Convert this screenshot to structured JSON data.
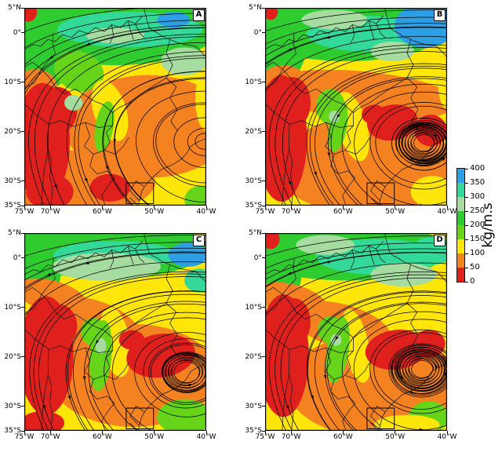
{
  "chart_data": {
    "type": "heatmap",
    "description": "Four-panel (A-D) map figure over South America: shaded vertically-integrated moisture flux magnitude (kg/m.s) with overlaid black streamlines (arrows), country borders, and a small study-area box near the bottom of each panel. Shared vertical colorbar at right.",
    "extent": {
      "lon_ticks_range": [
        "75°W",
        "40°W"
      ],
      "lat_ticks_range": [
        "5°N",
        "35°S"
      ]
    },
    "x_ticks": [
      {
        "label": "75°W",
        "f": 0.0
      },
      {
        "label": "70°W",
        "f": 0.1429
      },
      {
        "label": "60°W",
        "f": 0.4286
      },
      {
        "label": "50°W",
        "f": 0.7143
      },
      {
        "label": "40°W",
        "f": 1.0
      }
    ],
    "y_ticks": [
      {
        "label": "5°N",
        "f": 0.0
      },
      {
        "label": "0°",
        "f": 0.125
      },
      {
        "label": "10°S",
        "f": 0.375
      },
      {
        "label": "20°S",
        "f": 0.625
      },
      {
        "label": "30°S",
        "f": 0.875
      },
      {
        "label": "35°S",
        "f": 1.0
      }
    ],
    "colorbar": {
      "label": "kg/m.s",
      "min": 0,
      "max": 400,
      "step": 50,
      "tick_labels": [
        "400",
        "350",
        "300",
        "250",
        "200",
        "150",
        "100",
        "50",
        "0"
      ],
      "colors_top_to_bottom": [
        "#2D9FE4",
        "#33D999",
        "#A6DCA0",
        "#2ECC2E",
        "#66D419",
        "#FFE60A",
        "#F58220",
        "#E0201C"
      ]
    },
    "palette": {
      "r": "#E0201C",
      "o": "#F58220",
      "y": "#FFE60A",
      "gy": "#66D419",
      "g": "#2ECC2E",
      "pg": "#A6DCA0",
      "t": "#33D999",
      "b": "#2D9FE4"
    },
    "panels": [
      {
        "label": "A",
        "flow": {
          "cx": 0.99,
          "cy": 0.57,
          "drift": 0.32
        },
        "blobs": [
          [
            "g",
            50,
            9,
            58,
            20,
            0
          ],
          [
            "g",
            8,
            24,
            20,
            18,
            0
          ],
          [
            "t",
            58,
            11,
            40,
            9,
            0
          ],
          [
            "pg",
            50,
            14,
            16,
            4,
            0
          ],
          [
            "b",
            82,
            6,
            9,
            4,
            0
          ],
          [
            "pg",
            88,
            27,
            13,
            7,
            0
          ],
          [
            "gy",
            30,
            32,
            14,
            10,
            20
          ],
          [
            "o",
            68,
            60,
            46,
            26,
            0
          ],
          [
            "o",
            30,
            88,
            42,
            16,
            0
          ],
          [
            "o",
            6,
            40,
            12,
            9,
            0
          ],
          [
            "y",
            47,
            52,
            9,
            16,
            -18
          ],
          [
            "y",
            100,
            46,
            6,
            16,
            0
          ],
          [
            "gy",
            44,
            60,
            5,
            13,
            10
          ],
          [
            "gy",
            97,
            97,
            9,
            7,
            0
          ],
          [
            "r",
            10,
            68,
            15,
            30,
            0
          ],
          [
            "r",
            18,
            52,
            11,
            12,
            0
          ],
          [
            "r",
            14,
            93,
            13,
            9,
            0
          ],
          [
            "r",
            47,
            91,
            11,
            7,
            0
          ],
          [
            "r",
            2,
            2,
            5,
            5,
            0
          ],
          [
            "pg",
            27,
            48,
            5,
            4,
            0
          ]
        ]
      },
      {
        "label": "B",
        "flow": {
          "cx": 0.87,
          "cy": 0.58,
          "drift": 0.32
        },
        "blobs": [
          [
            "g",
            45,
            10,
            55,
            17,
            0
          ],
          [
            "g",
            6,
            22,
            16,
            16,
            0
          ],
          [
            "t",
            55,
            13,
            32,
            9,
            0
          ],
          [
            "pg",
            38,
            6,
            18,
            5,
            0
          ],
          [
            "b",
            88,
            9,
            17,
            11,
            0
          ],
          [
            "pg",
            70,
            22,
            12,
            5,
            0
          ],
          [
            "o",
            52,
            44,
            54,
            12,
            5
          ],
          [
            "o",
            55,
            80,
            50,
            24,
            0
          ],
          [
            "o",
            10,
            38,
            13,
            9,
            0
          ],
          [
            "y",
            48,
            60,
            8,
            18,
            -15
          ],
          [
            "y",
            100,
            38,
            5,
            13,
            0
          ],
          [
            "gy",
            36,
            50,
            8,
            9,
            0
          ],
          [
            "gy",
            40,
            60,
            5,
            13,
            10
          ],
          [
            "pg",
            38,
            55,
            3,
            3,
            0
          ],
          [
            "r",
            9,
            66,
            14,
            32,
            0
          ],
          [
            "r",
            15,
            48,
            10,
            13,
            0
          ],
          [
            "r",
            70,
            58,
            14,
            9,
            -10
          ],
          [
            "r",
            91,
            62,
            9,
            8,
            0
          ],
          [
            "r",
            60,
            54,
            7,
            5,
            0
          ],
          [
            "y",
            92,
            93,
            12,
            8,
            0
          ],
          [
            "r",
            3,
            2,
            4,
            4,
            0
          ]
        ]
      },
      {
        "label": "C",
        "flow": {
          "cx": 0.89,
          "cy": 0.6,
          "drift": 0.34
        },
        "blobs": [
          [
            "g",
            45,
            8,
            56,
            15,
            0
          ],
          [
            "g",
            6,
            20,
            14,
            16,
            0
          ],
          [
            "t",
            50,
            11,
            34,
            7,
            0
          ],
          [
            "pg",
            45,
            17,
            30,
            7,
            0
          ],
          [
            "b",
            90,
            11,
            11,
            6,
            0
          ],
          [
            "t",
            96,
            24,
            8,
            6,
            0
          ],
          [
            "o",
            15,
            32,
            20,
            8,
            15
          ],
          [
            "o",
            38,
            45,
            26,
            11,
            18
          ],
          [
            "o",
            60,
            72,
            46,
            26,
            0
          ],
          [
            "y",
            50,
            55,
            8,
            18,
            -10
          ],
          [
            "y",
            100,
            42,
            5,
            12,
            0
          ],
          [
            "gy",
            42,
            62,
            6,
            18,
            5
          ],
          [
            "gy",
            38,
            50,
            7,
            7,
            0
          ],
          [
            "pg",
            42,
            57,
            3,
            4,
            0
          ],
          [
            "r",
            12,
            62,
            15,
            30,
            0
          ],
          [
            "r",
            19,
            47,
            10,
            11,
            0
          ],
          [
            "r",
            75,
            62,
            19,
            11,
            -8
          ],
          [
            "r",
            59,
            54,
            7,
            5,
            0
          ],
          [
            "gy",
            88,
            93,
            15,
            9,
            0
          ],
          [
            "r",
            10,
            96,
            12,
            6,
            0
          ]
        ]
      },
      {
        "label": "D",
        "flow": {
          "cx": 0.86,
          "cy": 0.58,
          "drift": 0.34
        },
        "blobs": [
          [
            "g",
            45,
            9,
            55,
            15,
            0
          ],
          [
            "g",
            6,
            21,
            14,
            15,
            0
          ],
          [
            "t",
            62,
            12,
            34,
            9,
            0
          ],
          [
            "pg",
            33,
            6,
            16,
            5,
            0
          ],
          [
            "pg",
            76,
            21,
            18,
            6,
            0
          ],
          [
            "t",
            92,
            9,
            12,
            7,
            0
          ],
          [
            "o",
            15,
            34,
            20,
            8,
            15
          ],
          [
            "o",
            42,
            47,
            28,
            11,
            15
          ],
          [
            "o",
            60,
            77,
            48,
            26,
            0
          ],
          [
            "y",
            50,
            57,
            7,
            19,
            -12
          ],
          [
            "y",
            100,
            40,
            5,
            13,
            0
          ],
          [
            "gy",
            40,
            59,
            6,
            17,
            8
          ],
          [
            "gy",
            36,
            49,
            7,
            7,
            0
          ],
          [
            "pg",
            39,
            54,
            3,
            3,
            0
          ],
          [
            "r",
            10,
            62,
            14,
            31,
            0
          ],
          [
            "r",
            16,
            45,
            9,
            12,
            0
          ],
          [
            "r",
            72,
            59,
            17,
            10,
            -8
          ],
          [
            "r",
            90,
            56,
            9,
            7,
            0
          ],
          [
            "gy",
            90,
            93,
            11,
            8,
            0
          ],
          [
            "y",
            78,
            97,
            18,
            5,
            0
          ],
          [
            "r",
            3,
            3,
            5,
            5,
            0
          ]
        ]
      }
    ],
    "geo": {
      "paths": [
        "M65.7 0 L67 5 L68.6 10 L70.5 11.5 L72.9 12.5 L76 14.5 L80 16 L84 17.5 L88 18.5 L91.5 19 L94.3 19.5 L97 22 L100 25",
        "M100 66 L95 68 L91.4 70 L89 74 L85.5 77 L82 79 L78.5 80.5 L75.7 81.5 L72 84.5 L68.6 87.5 L66 90.5 L64.5 93 L63.2 97.5 L62.5 100",
        "M0 48.8 L2.5 50.5 L5 53 L8.5 55.5 L13.4 58.7 L13.2 64 L13.1 71.5 L12 77 L11 82 L10.3 88 L9.7 95 L9.4 100",
        "M0 21 L5 18.5 L9 19.5 L13 16 L17 17 L21 13.5 L26 15 L30 11.5 L35 13 L39 10 L44 12 L48 8.5 L53 10 L57 6.5 L61 8 L65 4",
        "M57 6.5 L58.5 12 L60 16 M61 8 L63.5 13 L66 15 M48 8.5 L49 14 L47 18",
        "M16 13 L15.5 18 L17 23 L13 27 L9.5 31 L13.5 35 L17 40 L22 43.5 L28 41 L33 44 L38 47 L43.5 49 L48.5 53 L48.5 59.5 L45 63 L47 68 L44 72",
        "M13.2 59 L20 57 L27 60 L33.5 58 L41 60.5 L48.5 59.5 M33.5 58 L36 65 L33 70 L38 74 L44 72 L50 74 L54.5 70 L57.5 65.5 M38 74 L36 80 L40 84 L45.5 82.5 L49.5 86 L46 90 L42.5 95 L44.5 100",
        "M0 30 L4.5 27.5 L9.5 31 M0 40.5 L5.5 38 L9.5 31",
        "M80 16 L78 23 L81.5 29 L78 35.5 L83.5 40 L80 45.5 L84 51.5 L80.5 57.5 L84 62 M78 35.5 L70 40 L63.5 44 L57.5 48 L52 50.5 L48.5 53",
        "M63.2 97.5 L58 92.5 L61.5 87.5 L66 90.5 M62.5 100 L58 96",
        "M13.1 71.5 L15 78 L14 85 L15.5 92 L14.5 100"
      ],
      "study_box": {
        "x": 56,
        "y": 88.5,
        "w": 15,
        "h": 10.5
      }
    }
  }
}
